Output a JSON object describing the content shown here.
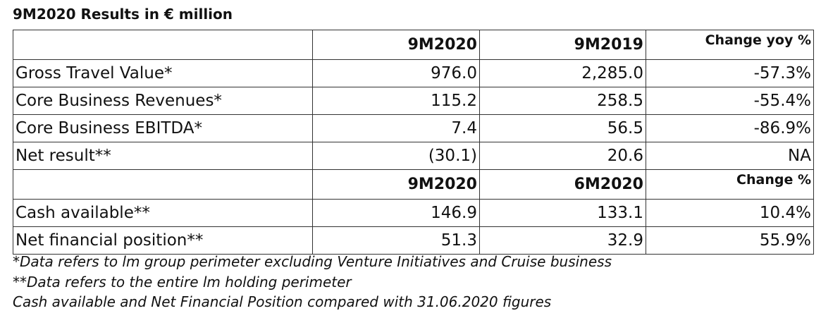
{
  "title": "9M2020 Results in € million",
  "sections": [
    {
      "header": [
        "9M2020",
        "9M2019",
        "Change yoy %"
      ],
      "rows": [
        [
          "Gross Travel Value*",
          "976.0",
          "2,285.0",
          "-57.3%"
        ],
        [
          "Core Business Revenues*",
          "115.2",
          "258.5",
          "-55.4%"
        ],
        [
          "Core Business EBITDA*",
          "7.4",
          "56.5",
          "-86.9%"
        ],
        [
          "Net result**",
          "(30.1)",
          "20.6",
          "NA"
        ]
      ]
    },
    {
      "header": [
        "9M2020",
        "6M2020",
        "Change %"
      ],
      "rows": [
        [
          "Cash available**",
          "146.9",
          "133.1",
          "10.4%"
        ],
        [
          "Net financial position**",
          "51.3",
          "32.9",
          "55.9%"
        ]
      ]
    }
  ],
  "footnotes": [
    "*Data refers to lm group perimeter excluding Venture Initiatives and Cruise business",
    "**Data refers to the entire lm holding perimeter",
    "Cash available and Net Financial Position compared with 31.06.2020 figures"
  ]
}
